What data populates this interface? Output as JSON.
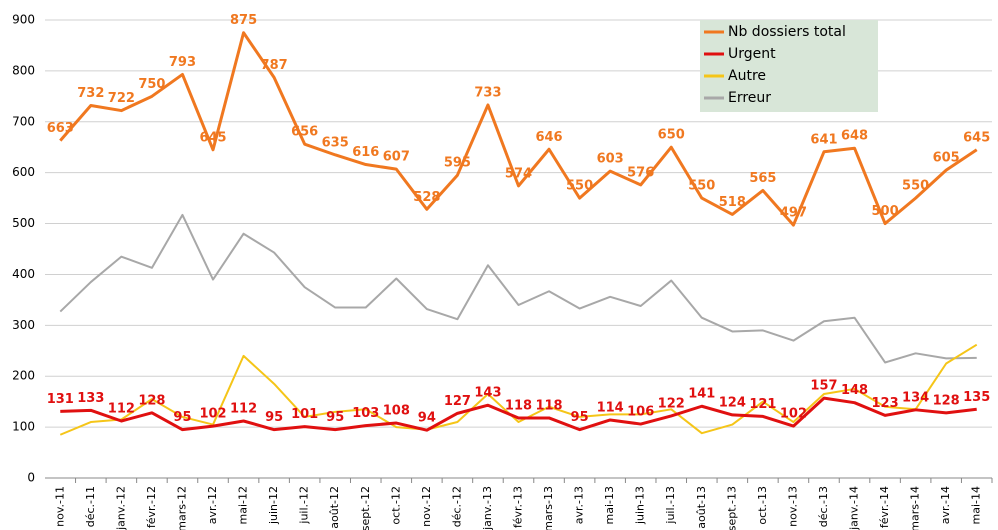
{
  "chart_data": {
    "type": "line",
    "categories": [
      "nov.-11",
      "déc.-11",
      "janv.-12",
      "févr.-12",
      "mars-12",
      "avr.-12",
      "mai-12",
      "juin-12",
      "juil.-12",
      "août-12",
      "sept.-12",
      "oct.-12",
      "nov.-12",
      "déc.-12",
      "janv.-13",
      "févr.-13",
      "mars-13",
      "avr.-13",
      "mai-13",
      "juin-13",
      "juil.-13",
      "août-13",
      "sept.-13",
      "oct.-13",
      "nov.-13",
      "déc.-13",
      "janv.-14",
      "févr.-14",
      "mars-14",
      "avr.-14",
      "mai-14"
    ],
    "series": [
      {
        "name": "Nb dossiers total",
        "color": "#f07820",
        "labels": true,
        "width": 3,
        "values": [
          663,
          732,
          722,
          750,
          793,
          645,
          875,
          787,
          656,
          635,
          616,
          607,
          528,
          595,
          733,
          574,
          646,
          550,
          603,
          576,
          650,
          550,
          518,
          565,
          497,
          641,
          648,
          500,
          550,
          605,
          645
        ]
      },
      {
        "name": "Urgent",
        "color": "#e01010",
        "labels": true,
        "width": 3,
        "values": [
          131,
          133,
          112,
          128,
          95,
          102,
          112,
          95,
          101,
          95,
          103,
          108,
          94,
          127,
          143,
          118,
          118,
          95,
          114,
          106,
          122,
          141,
          124,
          121,
          102,
          157,
          148,
          123,
          134,
          128,
          135
        ]
      },
      {
        "name": "Autre",
        "color": "#f5c518",
        "labels": false,
        "width": 2,
        "values": [
          85,
          110,
          115,
          155,
          120,
          105,
          240,
          185,
          120,
          130,
          135,
          100,
          95,
          110,
          165,
          110,
          140,
          120,
          125,
          125,
          135,
          88,
          105,
          150,
          110,
          165,
          175,
          140,
          135,
          225,
          262
        ]
      },
      {
        "name": "Erreur",
        "color": "#a8a8a8",
        "labels": false,
        "width": 2,
        "values": [
          327,
          385,
          435,
          413,
          517,
          390,
          480,
          443,
          375,
          335,
          335,
          392,
          332,
          312,
          418,
          340,
          367,
          333,
          356,
          338,
          388,
          315,
          288,
          290,
          270,
          308,
          315,
          227,
          245,
          235,
          236
        ]
      }
    ],
    "ylim": [
      0,
      900
    ],
    "yticks": [
      0,
      100,
      200,
      300,
      400,
      500,
      600,
      700,
      800,
      900
    ],
    "grid": true,
    "legend": "top-right"
  }
}
